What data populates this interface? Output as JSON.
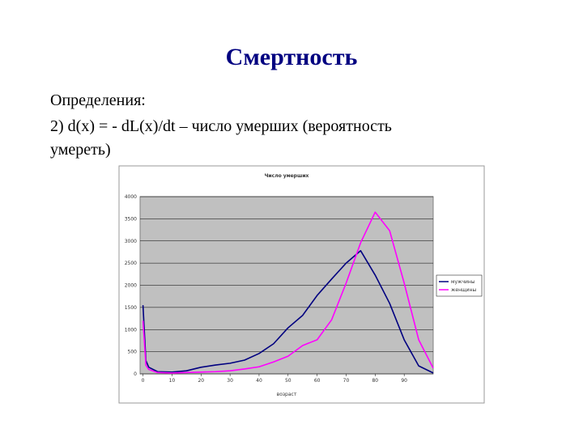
{
  "slide": {
    "title": "Смертность",
    "lines": [
      "Определения:",
      "2) d(x) = - dL(x)/dt – число умерших (вероятность",
      "умереть)"
    ]
  },
  "chart_data": {
    "type": "line",
    "title": "Число умерших",
    "x_label": "возраст",
    "x": [
      0,
      1,
      2,
      5,
      10,
      15,
      20,
      25,
      30,
      35,
      40,
      45,
      50,
      55,
      60,
      65,
      70,
      75,
      80,
      85,
      90,
      95,
      100
    ],
    "series": [
      {
        "name": "мужчины",
        "color": "#000080",
        "values": [
          1550,
          300,
          150,
          50,
          40,
          70,
          150,
          200,
          240,
          310,
          460,
          680,
          1040,
          1320,
          1770,
          2140,
          2500,
          2780,
          2230,
          1590,
          770,
          180,
          20
        ]
      },
      {
        "name": "женщины",
        "color": "#ff00ff",
        "values": [
          1200,
          200,
          100,
          30,
          20,
          30,
          40,
          50,
          70,
          110,
          160,
          270,
          400,
          640,
          770,
          1220,
          2050,
          2960,
          3650,
          3230,
          2050,
          770,
          130
        ]
      }
    ],
    "xlim": [
      -1,
      100
    ],
    "ylim": [
      0,
      4000
    ],
    "xticks": [
      0,
      10,
      20,
      30,
      40,
      50,
      60,
      70,
      80,
      90
    ],
    "yticks": [
      0,
      500,
      1000,
      1500,
      2000,
      2500,
      3000,
      3500,
      4000
    ],
    "grid": true,
    "legend": "right"
  }
}
